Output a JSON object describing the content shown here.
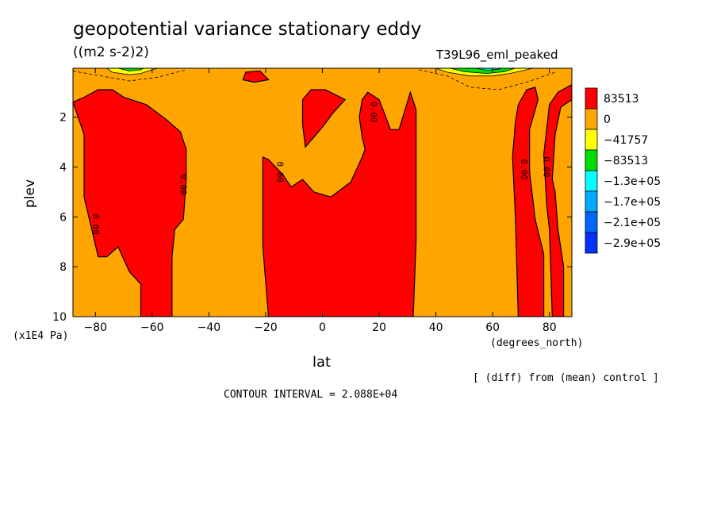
{
  "chart_data": {
    "type": "contour",
    "title": "geopotential variance stationary eddy",
    "units": "((m2 s-2)2)",
    "run_label": "T39L96_eml_peaked",
    "ylabel": "plev",
    "yunits": "(x1E4 Pa)",
    "xlabel": "lat",
    "xunits": "(degrees_north)",
    "diff_note": "[ (diff) from (mean) control ]",
    "contour_interval": "CONTOUR INTERVAL = 2.088E+04",
    "xlim": [
      -87.9,
      87.9
    ],
    "ylim": [
      10,
      0.04
    ],
    "xticks": [
      -80,
      -60,
      -40,
      -20,
      0,
      20,
      40,
      60,
      80
    ],
    "yticks": [
      2,
      4,
      6,
      8,
      10
    ],
    "colorbar": {
      "levels": [
        "83513",
        "0",
        "-41757",
        "-83513",
        "-1.3e+05",
        "-1.7e+05",
        "-2.1e+05",
        "-2.9e+05"
      ],
      "colors": [
        "#ff0000",
        "#ffa500",
        "#ffff00",
        "#00dd00",
        "#00ffff",
        "#00aaff",
        "#0066ff",
        "#0033ff"
      ]
    },
    "background_color": "#ffa500",
    "positive_color": "#ff0000",
    "contour_labels": [
      {
        "text": "0.00",
        "lat": -80,
        "plev": 6.3
      },
      {
        "text": "0.00",
        "lat": -49,
        "plev": 4.7
      },
      {
        "text": "0.00",
        "lat": -15,
        "plev": 4.2
      },
      {
        "text": "0.00",
        "lat": 18,
        "plev": 1.8
      },
      {
        "text": "0.00",
        "lat": 71,
        "plev": 4.1
      },
      {
        "text": "0.00",
        "lat": 79,
        "plev": 4.0
      }
    ],
    "positive_regions": [
      [
        [
          -87.9,
          1.4
        ],
        [
          -84,
          1.2
        ],
        [
          -79,
          0.9
        ],
        [
          -74,
          0.9
        ],
        [
          -70,
          1.2
        ],
        [
          -62,
          1.5
        ],
        [
          -55,
          2.1
        ],
        [
          -50,
          2.6
        ],
        [
          -48,
          3.3
        ],
        [
          -48,
          4.5
        ],
        [
          -49,
          6.1
        ],
        [
          -52,
          6.5
        ],
        [
          -53,
          7.6
        ],
        [
          -53,
          10
        ],
        [
          -64,
          10
        ],
        [
          -64,
          8.7
        ],
        [
          -68,
          8.2
        ],
        [
          -72,
          7.2
        ],
        [
          -76,
          7.6
        ],
        [
          -79,
          7.6
        ],
        [
          -84,
          5.2
        ],
        [
          -84,
          2.7
        ],
        [
          -87.9,
          1.4
        ]
      ],
      [
        [
          -21,
          3.6
        ],
        [
          -19,
          3.7
        ],
        [
          -14,
          4.3
        ],
        [
          -11,
          4.8
        ],
        [
          -7,
          4.5
        ],
        [
          -3,
          5.0
        ],
        [
          3,
          5.2
        ],
        [
          10,
          4.6
        ],
        [
          14,
          3.6
        ],
        [
          15,
          3.3
        ],
        [
          14,
          2.8
        ],
        [
          13,
          2.0
        ],
        [
          14,
          1.3
        ],
        [
          16,
          1.0
        ],
        [
          20,
          1.3
        ],
        [
          24,
          2.5
        ],
        [
          27,
          2.5
        ],
        [
          31,
          1.0
        ],
        [
          33,
          1.7
        ],
        [
          33,
          7.0
        ],
        [
          32,
          10
        ],
        [
          -19,
          10
        ],
        [
          -21,
          7.2
        ],
        [
          -21,
          3.6
        ]
      ],
      [
        [
          -7,
          1.3
        ],
        [
          -4,
          0.9
        ],
        [
          1,
          0.9
        ],
        [
          8,
          1.3
        ],
        [
          4,
          1.8
        ],
        [
          0,
          2.4
        ],
        [
          -6,
          3.2
        ],
        [
          -7,
          2.3
        ],
        [
          -7,
          1.3
        ]
      ],
      [
        [
          -27,
          0.2
        ],
        [
          -22,
          0.15
        ],
        [
          -19,
          0.5
        ],
        [
          -24,
          0.6
        ],
        [
          -28,
          0.5
        ],
        [
          -27,
          0.2
        ]
      ],
      [
        [
          69,
          1.5
        ],
        [
          72,
          0.9
        ],
        [
          75,
          0.8
        ],
        [
          76,
          1.3
        ],
        [
          73,
          2.5
        ],
        [
          73,
          4.2
        ],
        [
          75,
          6.1
        ],
        [
          78,
          7.5
        ],
        [
          78,
          10
        ],
        [
          69,
          10
        ],
        [
          68,
          6.0
        ],
        [
          67,
          3.6
        ],
        [
          68,
          2.2
        ],
        [
          69,
          1.5
        ]
      ],
      [
        [
          78,
          3.5
        ],
        [
          80,
          1.5
        ],
        [
          83,
          1.0
        ],
        [
          87.9,
          0.7
        ],
        [
          87.9,
          1.3
        ],
        [
          84,
          1.6
        ],
        [
          82,
          2.7
        ],
        [
          81,
          4.5
        ],
        [
          82,
          5.0
        ],
        [
          83,
          6.5
        ],
        [
          85,
          8.0
        ],
        [
          85,
          10
        ],
        [
          81,
          10
        ],
        [
          80,
          6.5
        ],
        [
          79,
          5.5
        ],
        [
          78,
          3.5
        ]
      ]
    ],
    "negative_regions": [
      {
        "level": "-41757",
        "points": [
          [
            -76,
            0.04
          ],
          [
            -74,
            0.2
          ],
          [
            -68,
            0.3
          ],
          [
            -64,
            0.25
          ],
          [
            -60,
            0.1
          ],
          [
            -58,
            0.04
          ]
        ]
      },
      {
        "level": "-83513",
        "points": [
          [
            -72,
            0.04
          ],
          [
            -68,
            0.15
          ],
          [
            -64,
            0.1
          ],
          [
            -63,
            0.04
          ]
        ]
      },
      {
        "level": "-41757",
        "points": [
          [
            40,
            0.04
          ],
          [
            44,
            0.2
          ],
          [
            52,
            0.35
          ],
          [
            60,
            0.35
          ],
          [
            66,
            0.25
          ],
          [
            72,
            0.1
          ],
          [
            74,
            0.04
          ]
        ]
      },
      {
        "level": "-83513",
        "points": [
          [
            45,
            0.04
          ],
          [
            50,
            0.18
          ],
          [
            58,
            0.25
          ],
          [
            64,
            0.18
          ],
          [
            68,
            0.04
          ]
        ]
      },
      {
        "level": "-1.3e+05",
        "points": [
          [
            54,
            0.04
          ],
          [
            58,
            0.12
          ],
          [
            62,
            0.08
          ],
          [
            63,
            0.04
          ]
        ]
      }
    ],
    "dashed_contours": [
      [
        [
          -88,
          0.15
        ],
        [
          -78,
          0.35
        ],
        [
          -68,
          0.55
        ],
        [
          -58,
          0.4
        ],
        [
          -48,
          0.1
        ]
      ],
      [
        [
          34,
          0.1
        ],
        [
          44,
          0.35
        ],
        [
          52,
          0.8
        ],
        [
          62,
          0.9
        ],
        [
          72,
          0.6
        ],
        [
          82,
          0.2
        ]
      ]
    ]
  }
}
